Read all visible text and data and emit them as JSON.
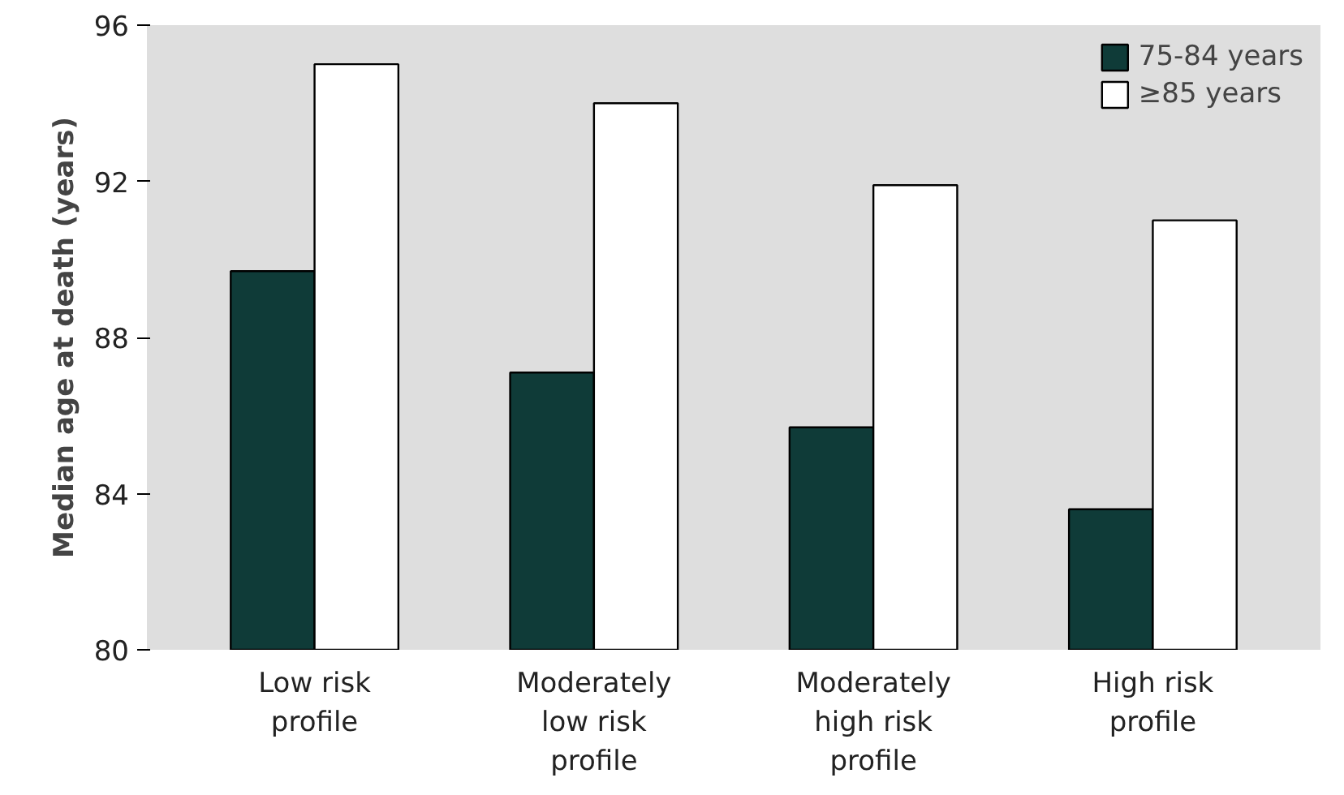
{
  "chart_data": {
    "type": "bar",
    "ylabel": "Median age at death (years)",
    "categories": [
      "Low risk profile",
      "Moderately low risk profile",
      "Moderately high risk profile",
      "High risk profile"
    ],
    "series": [
      {
        "name": "75-84 years",
        "color": "#0f3b38",
        "values": [
          89.7,
          87.1,
          85.7,
          83.6
        ]
      },
      {
        "name": "≥85 years",
        "color": "#ffffff",
        "values": [
          95.0,
          94.0,
          91.9,
          91.0
        ]
      }
    ],
    "ylim": [
      80,
      96
    ],
    "yticks": [
      80,
      84,
      88,
      92,
      96
    ],
    "grid": false,
    "legend": "top right"
  }
}
